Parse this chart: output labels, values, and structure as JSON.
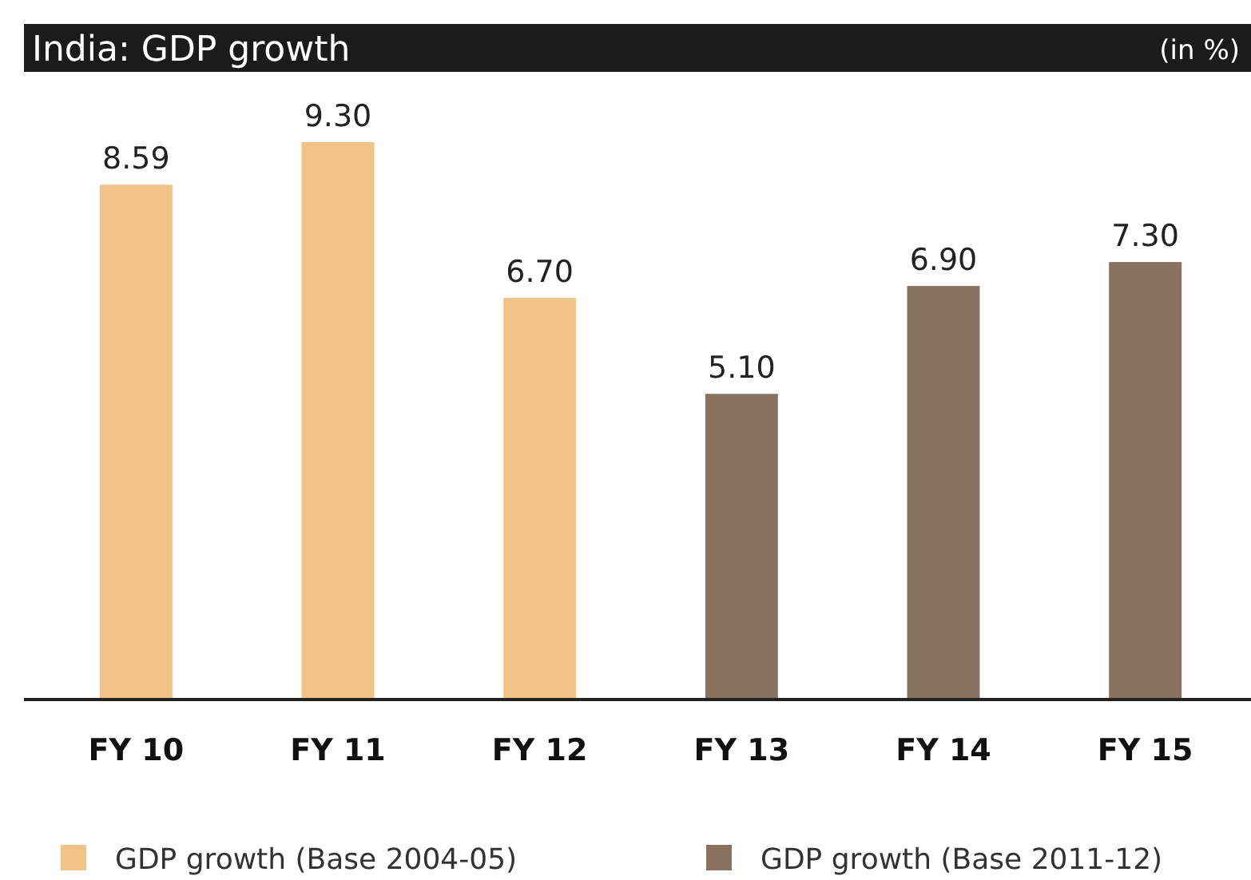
{
  "chart_data": {
    "type": "bar",
    "title": "India: GDP growth",
    "subtitle": "(in %)",
    "categories": [
      "FY 10",
      "FY 11",
      "FY 12",
      "FY 13",
      "FY 14",
      "FY 15"
    ],
    "series": [
      {
        "name": "GDP growth (Base 2004-05)",
        "color": "#f0c486",
        "values": [
          8.59,
          9.3,
          6.7,
          null,
          null,
          null
        ],
        "value_labels": [
          "8.59",
          "9.30",
          "6.70",
          null,
          null,
          null
        ]
      },
      {
        "name": "GDP growth (Base 2011-12)",
        "color": "#8a7260",
        "values": [
          null,
          null,
          null,
          5.1,
          6.9,
          7.3
        ],
        "value_labels": [
          null,
          null,
          null,
          "5.10",
          "6.90",
          "7.30"
        ]
      }
    ],
    "legend": "bottom"
  }
}
